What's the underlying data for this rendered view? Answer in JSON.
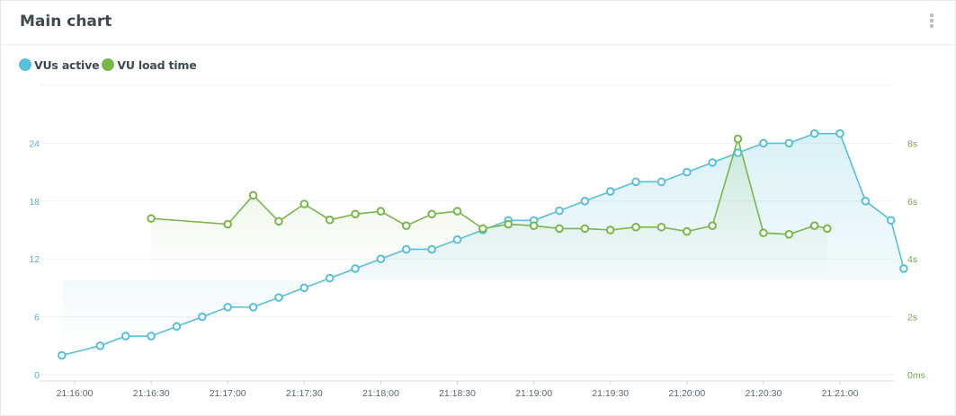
{
  "panel": {
    "title": "Main chart",
    "menu_icon": "kebab-vertical-icon"
  },
  "colors": {
    "vus": "#58bfd9",
    "load": "#7ab648",
    "left_axis": "#5aaed8",
    "right_axis": "#6aa84f",
    "grid": "#eef1f3"
  },
  "chart_data": {
    "type": "line",
    "legend": [
      {
        "name": "VUs active",
        "color": "#58bfd9"
      },
      {
        "name": "VU load time",
        "color": "#7ab648"
      }
    ],
    "legend_position": "top-left",
    "grid": true,
    "x_ticks": [
      "21:16:00",
      "21:16:30",
      "21:17:00",
      "21:17:30",
      "21:18:00",
      "21:18:30",
      "21:19:00",
      "21:19:30",
      "21:20:00",
      "21:20:30",
      "21:21:00"
    ],
    "y_left": {
      "ticks": [
        "0",
        "6",
        "12",
        "18",
        "24"
      ],
      "ylim": [
        0,
        30
      ]
    },
    "y_right": {
      "ticks": [
        "0ms",
        "2s",
        "4s",
        "6s",
        "8s"
      ],
      "ylim": [
        0,
        10
      ]
    },
    "series": [
      {
        "name": "VUs active",
        "axis": "left",
        "area": true,
        "x": [
          "21:15:55",
          "21:16:10",
          "21:16:20",
          "21:16:30",
          "21:16:40",
          "21:16:50",
          "21:17:00",
          "21:17:10",
          "21:17:20",
          "21:17:30",
          "21:17:40",
          "21:17:50",
          "21:18:00",
          "21:18:10",
          "21:18:20",
          "21:18:30",
          "21:18:40",
          "21:18:50",
          "21:19:00",
          "21:19:10",
          "21:19:20",
          "21:19:30",
          "21:19:40",
          "21:19:50",
          "21:20:00",
          "21:20:10",
          "21:20:20",
          "21:20:30",
          "21:20:40",
          "21:20:50",
          "21:21:00",
          "21:21:10",
          "21:21:20",
          "21:21:25"
        ],
        "values": [
          2,
          3,
          4,
          4,
          5,
          6,
          7,
          7,
          8,
          9,
          10,
          11,
          12,
          13,
          13,
          14,
          15,
          16,
          16,
          17,
          18,
          19,
          20,
          20,
          21,
          22,
          23,
          24,
          24,
          25,
          25,
          18,
          16,
          11
        ]
      },
      {
        "name": "VU load time",
        "axis": "right",
        "area": true,
        "x": [
          "21:16:30",
          "21:17:00",
          "21:17:10",
          "21:17:20",
          "21:17:30",
          "21:17:40",
          "21:17:50",
          "21:18:00",
          "21:18:10",
          "21:18:20",
          "21:18:30",
          "21:18:40",
          "21:18:50",
          "21:19:00",
          "21:19:10",
          "21:19:20",
          "21:19:30",
          "21:19:40",
          "21:19:50",
          "21:20:00",
          "21:20:10",
          "21:20:20",
          "21:20:30",
          "21:20:40",
          "21:20:50",
          "21:20:55"
        ],
        "values": [
          5.4,
          5.2,
          6.2,
          5.3,
          5.9,
          5.35,
          5.55,
          5.65,
          5.15,
          5.55,
          5.65,
          5.05,
          5.2,
          5.15,
          5.05,
          5.05,
          5.0,
          5.1,
          5.1,
          4.95,
          5.15,
          8.15,
          4.9,
          4.85,
          5.15,
          5.05
        ]
      }
    ]
  }
}
